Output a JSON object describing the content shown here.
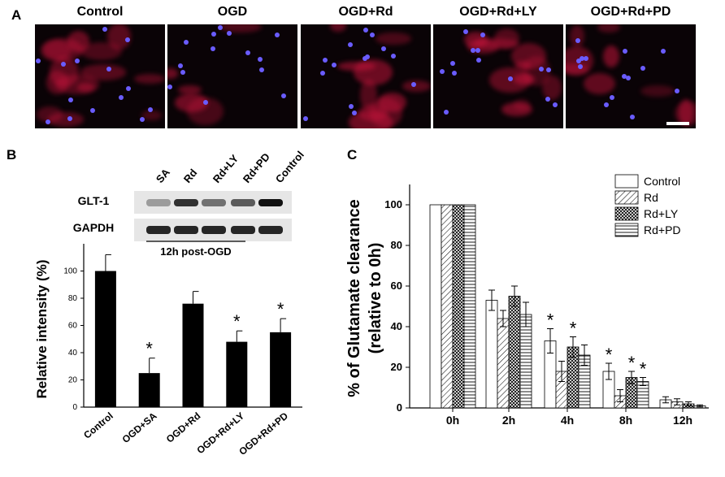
{
  "panel_a": {
    "letter": "A",
    "conditions": [
      "Control",
      "OGD",
      "OGD+Rd",
      "OGD+Rd+LY",
      "OGD+Rd+PD"
    ],
    "colors": {
      "cell": "#c8143c",
      "nuclei": "#6a5cff",
      "background": "#0a0306",
      "scale_bar": "#ffffff"
    }
  },
  "panel_b": {
    "letter": "B",
    "blot": {
      "lane_labels": [
        "SA",
        "Rd",
        "Rd+LY",
        "Rd+PD",
        "Control"
      ],
      "rows": [
        "GLT-1",
        "GAPDH"
      ],
      "timepoint": "12h post-OGD"
    },
    "chart_data": {
      "type": "bar",
      "categories": [
        "Control",
        "OGD+SA",
        "OGD+Rd",
        "OGD+Rd+LY",
        "OGD+Rd+PD"
      ],
      "values": [
        100,
        25,
        76,
        48,
        55
      ],
      "errors": [
        12,
        11,
        9,
        8,
        10
      ],
      "significance": [
        "",
        "*",
        "",
        "*",
        "*"
      ],
      "ylabel": "Relative intensity (%)",
      "ylim": [
        0,
        120
      ],
      "yticks": [
        0,
        20,
        40,
        60,
        80,
        100
      ],
      "bar_color": "#000000"
    }
  },
  "panel_c": {
    "letter": "C",
    "chart_data": {
      "type": "bar",
      "categories": [
        "0h",
        "2h",
        "4h",
        "8h",
        "12h"
      ],
      "series": [
        {
          "name": "Control",
          "values": [
            100,
            53,
            33,
            18,
            4
          ],
          "errors": [
            0,
            5,
            6,
            4,
            1.5
          ],
          "significance": [
            "",
            "",
            "*",
            "*",
            ""
          ],
          "pattern": "white"
        },
        {
          "name": "Rd",
          "values": [
            100,
            44,
            18,
            6,
            3
          ],
          "errors": [
            0,
            4,
            5,
            3,
            1.5
          ],
          "significance": [
            "",
            "",
            "",
            "",
            ""
          ],
          "pattern": "diagonal"
        },
        {
          "name": "Rd+LY",
          "values": [
            100,
            55,
            30,
            15,
            2
          ],
          "errors": [
            0,
            5,
            5,
            3,
            1
          ],
          "significance": [
            "",
            "",
            "*",
            "*",
            ""
          ],
          "pattern": "crosshatch"
        },
        {
          "name": "Rd+PD",
          "values": [
            100,
            46,
            26,
            13,
            1
          ],
          "errors": [
            0,
            6,
            5,
            2,
            0.5
          ],
          "significance": [
            "",
            "",
            "",
            "*",
            ""
          ],
          "pattern": "horizontal"
        }
      ],
      "ylabel": "% of Glutamate clearance",
      "ylabel2": "(relative to 0h)",
      "ylim": [
        0,
        110
      ],
      "yticks": [
        0,
        20,
        40,
        60,
        80,
        100
      ],
      "legend_position": "top-right"
    }
  }
}
